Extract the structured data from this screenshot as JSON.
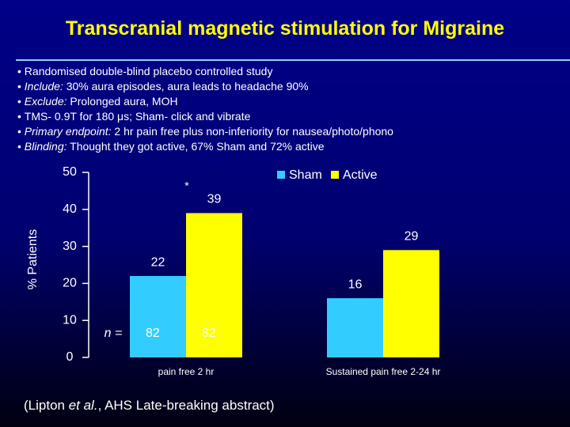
{
  "slide_title": "Transcranial magnetic stimulation for Migraine",
  "bullets": [
    {
      "text": "Randomised double-blind placebo controlled study"
    },
    {
      "lead": "Include:",
      "text": " 30% aura episodes, aura leads to headache 90%"
    },
    {
      "lead": "Exclude:",
      "text": " Prolonged aura, MOH"
    },
    {
      "text": "TMS- 0.9T for 180 μs; Sham- click and vibrate"
    },
    {
      "lead": "Primary endpoint:",
      "text": " 2 hr pain free plus non-inferiority for nausea/photo/phono"
    },
    {
      "lead": "Blinding:",
      "text": " Thought they got active, 67% Sham and 72% active"
    }
  ],
  "citation": {
    "before": "(Lipton ",
    "italic": "et al.",
    "after": ", AHS Late-breaking abstract)"
  },
  "chart_data": {
    "type": "bar",
    "y_label": "% Patients",
    "categories": [
      "pain free 2 hr",
      "Sustained pain free 2-24 hr"
    ],
    "series": [
      {
        "name": "Sham",
        "color": "#33ccff",
        "values": [
          22,
          16
        ]
      },
      {
        "name": "Active",
        "color": "#ffff00",
        "values": [
          39,
          29
        ]
      }
    ],
    "ylim": [
      0,
      50
    ],
    "yticks": [
      0,
      10,
      20,
      30,
      40,
      50
    ],
    "annotation": "*",
    "sample_sizes": {
      "label": "n =",
      "values": [
        82,
        82
      ]
    }
  }
}
